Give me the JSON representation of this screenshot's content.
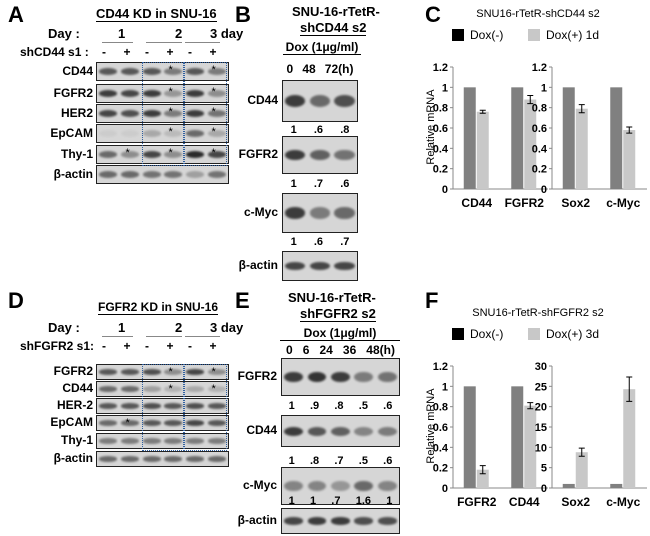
{
  "panelA": {
    "label": "A",
    "title": "CD44 KD in SNU-16",
    "day_label": "Day  :",
    "days": [
      "1",
      "2",
      "3 day"
    ],
    "treat_label": "shCD44 s1 :",
    "signs": [
      "-",
      "+",
      "-",
      "+",
      "-",
      "+"
    ],
    "rows": [
      "CD44",
      "FGFR2",
      "HER2",
      "EpCAM",
      "Thy-1",
      "β-actin"
    ],
    "star": "*"
  },
  "panelB": {
    "label": "B",
    "title1": "SNU-16-rTetR-",
    "title2": "shCD44 s2",
    "dox": "Dox (1μg/ml)",
    "times": [
      "0",
      "48",
      "72(h)"
    ],
    "rows": [
      "CD44",
      "FGFR2",
      "c-Myc",
      "β-actin"
    ],
    "quant": [
      [
        "1",
        ".6",
        ".8"
      ],
      [
        "1",
        ".7",
        ".6"
      ],
      [
        "1",
        ".6",
        ".7"
      ]
    ]
  },
  "panelD": {
    "label": "D",
    "title": "FGFR2  KD in SNU-16",
    "day_label": "Day  :",
    "days": [
      "1",
      "2",
      "3 day"
    ],
    "treat_label": "shFGFR2 s1:",
    "signs": [
      "-",
      "+",
      "-",
      "+",
      "-",
      "+"
    ],
    "rows": [
      "FGFR2",
      "CD44",
      "HER-2",
      "EpCAM",
      "Thy-1",
      "β-actin"
    ],
    "star": "*"
  },
  "panelE": {
    "label": "E",
    "title1": "SNU-16-rTetR-",
    "title2": "shFGFR2  s2",
    "dox": "Dox (1μg/ml)",
    "times": [
      "0",
      "6",
      "24",
      "36",
      "48(h)"
    ],
    "rows": [
      "FGFR2",
      "CD44",
      "c-Myc",
      "β-actin"
    ],
    "quant": [
      [
        "1",
        ".9",
        ".8",
        ".5",
        ".6"
      ],
      [
        "1",
        ".8",
        ".7",
        ".5",
        ".6"
      ],
      [
        "1",
        "1",
        ".7",
        "1.6",
        "1"
      ]
    ]
  },
  "chart_data": [
    {
      "panel": "C",
      "type": "bar",
      "title": "SNU16-rTetR-shCD44 s2",
      "ylabel": "Relative mRNA",
      "legend": [
        "Dox(-)",
        "Dox(+) 1d"
      ],
      "colors": [
        "#808080",
        "#c8c8c8"
      ],
      "subplots": [
        {
          "categories": [
            "CD44",
            "FGFR2"
          ],
          "ylim": [
            0,
            1.2
          ],
          "yticks": [
            "0",
            "0.2",
            "0.4",
            "0.6",
            "0.8",
            "1",
            "1.2"
          ],
          "series": [
            {
              "name": "Dox(-)",
              "values": [
                1,
                1
              ]
            },
            {
              "name": "Dox(+) 1d",
              "values": [
                0.76,
                0.88
              ],
              "err": [
                0.015,
                0.04
              ]
            }
          ]
        },
        {
          "categories": [
            "Sox2",
            "c-Myc"
          ],
          "ylim": [
            0,
            1.2
          ],
          "yticks": [
            "0",
            "0.2",
            "0.4",
            "0.6",
            "0.8",
            "1",
            "1.2"
          ],
          "series": [
            {
              "name": "Dox(-)",
              "values": [
                1,
                1
              ]
            },
            {
              "name": "Dox(+) 1d",
              "values": [
                0.79,
                0.58
              ],
              "err": [
                0.04,
                0.03
              ]
            }
          ]
        }
      ]
    },
    {
      "panel": "F",
      "type": "bar",
      "title": "SNU16-rTetR-shFGFR2 s2",
      "ylabel": "Relative mRNA",
      "legend": [
        "Dox(-)",
        "Dox(+) 3d"
      ],
      "colors": [
        "#808080",
        "#c8c8c8"
      ],
      "subplots": [
        {
          "categories": [
            "FGFR2",
            "CD44"
          ],
          "ylim": [
            0,
            1.2
          ],
          "yticks": [
            "0",
            "0.2",
            "0.4",
            "0.6",
            "0.8",
            "1",
            "1.2"
          ],
          "series": [
            {
              "name": "Dox(-)",
              "values": [
                1,
                1
              ]
            },
            {
              "name": "Dox(+) 3d",
              "values": [
                0.18,
                0.81
              ],
              "err": [
                0.04,
                0.03
              ]
            }
          ]
        },
        {
          "categories": [
            "Sox2",
            "c-Myc"
          ],
          "ylim": [
            0,
            30
          ],
          "yticks": [
            "0",
            "5",
            "10",
            "15",
            "20",
            "25",
            "30"
          ],
          "series": [
            {
              "name": "Dox(-)",
              "values": [
                1,
                1
              ]
            },
            {
              "name": "Dox(+) 3d",
              "values": [
                8.8,
                24.3
              ],
              "err": [
                1,
                3
              ]
            }
          ]
        }
      ]
    }
  ]
}
